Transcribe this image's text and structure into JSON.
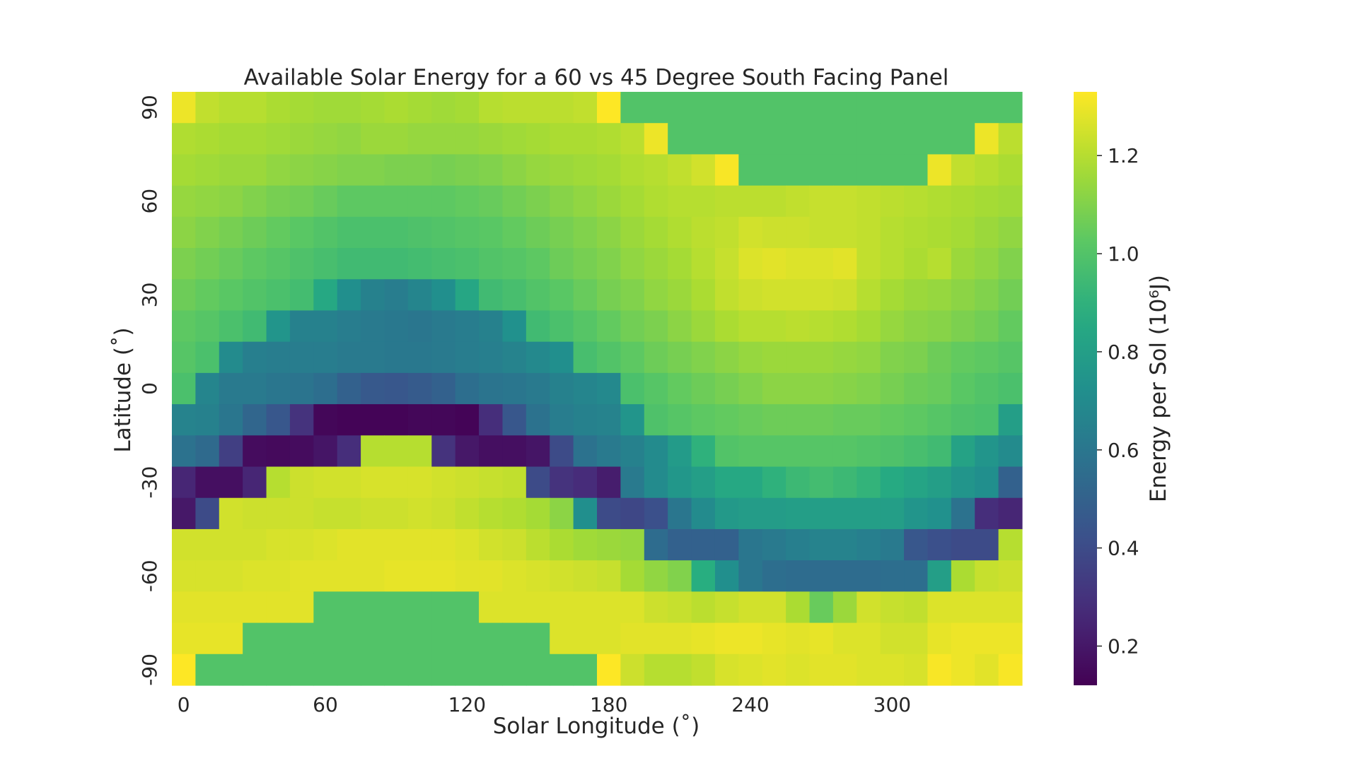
{
  "chart_data": {
    "type": "heatmap",
    "title": "Available Solar Energy for a 60 vs 45 Degree South Facing Panel",
    "xlabel": "Solar Longitude (˚)",
    "ylabel": "Latitude (˚)",
    "x": [
      0,
      10,
      20,
      30,
      40,
      50,
      60,
      70,
      80,
      90,
      100,
      110,
      120,
      130,
      140,
      150,
      160,
      170,
      180,
      190,
      200,
      210,
      220,
      230,
      240,
      250,
      260,
      270,
      280,
      290,
      300,
      310,
      320,
      330,
      340,
      350
    ],
    "y": [
      90,
      80,
      70,
      60,
      50,
      40,
      30,
      20,
      10,
      0,
      -10,
      -20,
      -30,
      -40,
      -50,
      -60,
      -70,
      -80,
      -90
    ],
    "xticks": [
      0,
      60,
      120,
      180,
      240,
      300
    ],
    "yticks": [
      90,
      60,
      30,
      0,
      -30,
      -60,
      -90
    ],
    "colorbar": {
      "label": "Energy per Sol (10⁶J)",
      "range": [
        0.12,
        1.33
      ],
      "ticks": [
        0.2,
        0.4,
        0.6,
        0.8,
        1.0,
        1.2
      ],
      "colormap": "viridis"
    },
    "grid": false,
    "legend": "colorbar-right",
    "z": [
      [
        1.3,
        1.22,
        1.2,
        1.2,
        1.18,
        1.17,
        1.16,
        1.16,
        1.17,
        1.18,
        1.17,
        1.16,
        1.17,
        1.2,
        1.21,
        1.21,
        1.21,
        1.22,
        1.33,
        1.0,
        1.0,
        1.0,
        1.0,
        1.0,
        1.0,
        1.0,
        1.0,
        1.0,
        1.0,
        1.0,
        1.0,
        1.0,
        1.0,
        1.0,
        1.0,
        1.0
      ],
      [
        1.19,
        1.18,
        1.17,
        1.17,
        1.16,
        1.15,
        1.14,
        1.13,
        1.15,
        1.15,
        1.14,
        1.14,
        1.14,
        1.15,
        1.16,
        1.17,
        1.18,
        1.18,
        1.19,
        1.21,
        1.3,
        1.0,
        1.0,
        1.0,
        1.0,
        1.0,
        1.0,
        1.0,
        1.0,
        1.0,
        1.0,
        1.0,
        1.0,
        1.0,
        1.3,
        1.21
      ],
      [
        1.17,
        1.16,
        1.15,
        1.15,
        1.13,
        1.12,
        1.11,
        1.1,
        1.1,
        1.09,
        1.09,
        1.08,
        1.09,
        1.1,
        1.12,
        1.14,
        1.15,
        1.16,
        1.17,
        1.19,
        1.2,
        1.22,
        1.25,
        1.32,
        1.0,
        1.0,
        1.0,
        1.0,
        1.0,
        1.0,
        1.0,
        1.0,
        1.3,
        1.22,
        1.2,
        1.18
      ],
      [
        1.14,
        1.13,
        1.12,
        1.1,
        1.08,
        1.07,
        1.05,
        1.03,
        1.03,
        1.03,
        1.03,
        1.03,
        1.04,
        1.05,
        1.07,
        1.09,
        1.11,
        1.13,
        1.15,
        1.17,
        1.19,
        1.2,
        1.2,
        1.21,
        1.21,
        1.21,
        1.22,
        1.23,
        1.23,
        1.22,
        1.21,
        1.2,
        1.19,
        1.18,
        1.17,
        1.16
      ],
      [
        1.12,
        1.1,
        1.08,
        1.06,
        1.04,
        1.02,
        1.0,
        0.98,
        0.98,
        0.98,
        0.99,
        1.0,
        1.01,
        1.02,
        1.04,
        1.06,
        1.08,
        1.1,
        1.12,
        1.15,
        1.17,
        1.19,
        1.21,
        1.22,
        1.25,
        1.24,
        1.24,
        1.23,
        1.23,
        1.22,
        1.2,
        1.19,
        1.18,
        1.17,
        1.15,
        1.13
      ],
      [
        1.09,
        1.07,
        1.05,
        1.03,
        1.01,
        0.99,
        0.97,
        0.95,
        0.95,
        0.95,
        0.96,
        0.97,
        0.98,
        1.0,
        1.01,
        1.03,
        1.06,
        1.08,
        1.1,
        1.13,
        1.15,
        1.17,
        1.2,
        1.23,
        1.27,
        1.28,
        1.27,
        1.27,
        1.28,
        1.22,
        1.2,
        1.18,
        1.2,
        1.15,
        1.13,
        1.1
      ],
      [
        1.06,
        1.04,
        1.02,
        1.0,
        0.98,
        0.96,
        0.85,
        0.72,
        0.65,
        0.63,
        0.67,
        0.72,
        0.84,
        0.95,
        0.97,
        1.0,
        1.02,
        1.05,
        1.08,
        1.1,
        1.13,
        1.15,
        1.18,
        1.22,
        1.24,
        1.25,
        1.25,
        1.25,
        1.24,
        1.2,
        1.17,
        1.15,
        1.14,
        1.12,
        1.1,
        1.07
      ],
      [
        1.03,
        1.01,
        0.98,
        0.95,
        0.75,
        0.65,
        0.65,
        0.63,
        0.62,
        0.61,
        0.6,
        0.62,
        0.63,
        0.65,
        0.73,
        0.95,
        0.98,
        1.01,
        1.04,
        1.07,
        1.09,
        1.12,
        1.15,
        1.18,
        1.2,
        1.2,
        1.21,
        1.2,
        1.19,
        1.17,
        1.14,
        1.12,
        1.11,
        1.09,
        1.07,
        1.04
      ],
      [
        1.01,
        0.98,
        0.7,
        0.64,
        0.63,
        0.63,
        0.63,
        0.62,
        0.62,
        0.61,
        0.61,
        0.62,
        0.63,
        0.64,
        0.66,
        0.69,
        0.72,
        0.97,
        1.0,
        1.03,
        1.06,
        1.08,
        1.1,
        1.12,
        1.14,
        1.15,
        1.15,
        1.15,
        1.14,
        1.13,
        1.1,
        1.09,
        1.06,
        1.04,
        1.03,
        1.01
      ],
      [
        0.98,
        0.67,
        0.62,
        0.62,
        0.6,
        0.59,
        0.56,
        0.5,
        0.46,
        0.45,
        0.47,
        0.5,
        0.56,
        0.59,
        0.6,
        0.62,
        0.65,
        0.67,
        0.69,
        0.98,
        1.01,
        1.04,
        1.06,
        1.08,
        1.1,
        1.12,
        1.12,
        1.12,
        1.11,
        1.1,
        1.08,
        1.06,
        1.05,
        1.02,
        1.0,
        0.98
      ],
      [
        0.66,
        0.65,
        0.6,
        0.52,
        0.45,
        0.3,
        0.14,
        0.13,
        0.13,
        0.13,
        0.14,
        0.14,
        0.13,
        0.28,
        0.45,
        0.58,
        0.63,
        0.65,
        0.66,
        0.75,
        0.99,
        1.01,
        1.03,
        1.04,
        1.05,
        1.06,
        1.06,
        1.06,
        1.05,
        1.05,
        1.04,
        1.03,
        1.01,
        0.99,
        0.98,
        0.8
      ],
      [
        0.58,
        0.54,
        0.35,
        0.16,
        0.15,
        0.16,
        0.19,
        0.28,
        1.2,
        1.2,
        1.2,
        0.3,
        0.2,
        0.17,
        0.17,
        0.19,
        0.4,
        0.58,
        0.62,
        0.65,
        0.7,
        0.78,
        0.9,
        1.0,
        1.01,
        1.01,
        1.01,
        1.01,
        1.01,
        1.0,
        0.99,
        0.97,
        0.95,
        0.82,
        0.75,
        0.7
      ],
      [
        0.25,
        0.17,
        0.17,
        0.25,
        1.2,
        1.24,
        1.25,
        1.25,
        1.26,
        1.26,
        1.26,
        1.25,
        1.24,
        1.23,
        1.22,
        0.4,
        0.3,
        0.27,
        0.22,
        0.62,
        0.7,
        0.76,
        0.8,
        0.85,
        0.85,
        0.9,
        0.94,
        0.96,
        0.94,
        0.91,
        0.86,
        0.83,
        0.8,
        0.75,
        0.72,
        0.5
      ],
      [
        0.2,
        0.4,
        1.25,
        1.24,
        1.24,
        1.24,
        1.23,
        1.23,
        1.24,
        1.24,
        1.25,
        1.24,
        1.22,
        1.2,
        1.19,
        1.17,
        1.12,
        0.72,
        0.4,
        0.38,
        0.42,
        0.6,
        0.7,
        0.77,
        0.79,
        0.79,
        0.8,
        0.8,
        0.8,
        0.8,
        0.8,
        0.75,
        0.73,
        0.58,
        0.28,
        0.25
      ],
      [
        1.25,
        1.25,
        1.25,
        1.25,
        1.26,
        1.26,
        1.27,
        1.28,
        1.28,
        1.28,
        1.28,
        1.28,
        1.27,
        1.25,
        1.24,
        1.21,
        1.18,
        1.16,
        1.15,
        1.14,
        0.55,
        0.5,
        0.5,
        0.5,
        0.6,
        0.62,
        0.64,
        0.66,
        0.66,
        0.64,
        0.62,
        0.45,
        0.42,
        0.4,
        0.4,
        1.2
      ],
      [
        1.26,
        1.26,
        1.26,
        1.27,
        1.27,
        1.28,
        1.28,
        1.28,
        1.28,
        1.29,
        1.29,
        1.29,
        1.28,
        1.28,
        1.27,
        1.26,
        1.25,
        1.24,
        1.23,
        1.17,
        1.13,
        1.1,
        0.88,
        0.72,
        0.6,
        0.56,
        0.55,
        0.55,
        0.55,
        0.55,
        0.56,
        0.56,
        0.8,
        1.18,
        1.23,
        1.24
      ],
      [
        1.28,
        1.28,
        1.28,
        1.28,
        1.28,
        1.28,
        1.0,
        1.0,
        1.0,
        1.0,
        1.0,
        1.0,
        1.0,
        1.27,
        1.27,
        1.27,
        1.27,
        1.27,
        1.27,
        1.27,
        1.24,
        1.23,
        1.21,
        1.23,
        1.25,
        1.25,
        1.18,
        1.05,
        1.15,
        1.25,
        1.23,
        1.22,
        1.27,
        1.27,
        1.27,
        1.27
      ],
      [
        1.29,
        1.29,
        1.29,
        1.0,
        1.0,
        1.0,
        1.0,
        1.0,
        1.0,
        1.0,
        1.0,
        1.0,
        1.0,
        1.0,
        1.0,
        1.0,
        1.27,
        1.27,
        1.27,
        1.28,
        1.28,
        1.28,
        1.29,
        1.3,
        1.3,
        1.29,
        1.28,
        1.29,
        1.27,
        1.27,
        1.25,
        1.25,
        1.29,
        1.3,
        1.3,
        1.3
      ],
      [
        1.33,
        1.0,
        1.0,
        1.0,
        1.0,
        1.0,
        1.0,
        1.0,
        1.0,
        1.0,
        1.0,
        1.0,
        1.0,
        1.0,
        1.0,
        1.0,
        1.0,
        1.0,
        1.33,
        1.24,
        1.2,
        1.2,
        1.22,
        1.26,
        1.27,
        1.28,
        1.27,
        1.28,
        1.28,
        1.27,
        1.27,
        1.26,
        1.32,
        1.3,
        1.28,
        1.32
      ]
    ]
  }
}
